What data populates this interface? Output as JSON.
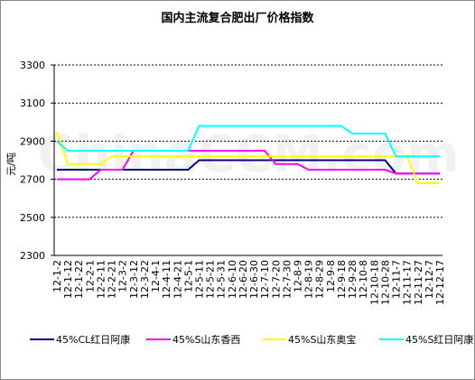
{
  "chart_data": {
    "type": "line",
    "title": "国内主流复合肥出厂价格指数",
    "y_label": "元/吨",
    "watermark": "ChinaCCM.com",
    "categories": [
      "12-1-2",
      "12-1-12",
      "12-1-22",
      "12-2-1",
      "12-2-11",
      "12-2-21",
      "12-3-2",
      "12-3-12",
      "12-3-22",
      "12-4-1",
      "12-4-11",
      "12-4-21",
      "12-5-1",
      "12-5-11",
      "12-5-21",
      "12-5-31",
      "12-6-10",
      "12-6-20",
      "12-6-30",
      "12-7-10",
      "12-7-20",
      "12-7-30",
      "12-8-9",
      "12-8-19",
      "12-8-29",
      "12-9-8",
      "12-9-18",
      "12-9-28",
      "12-10-8",
      "12-10-18",
      "12-10-28",
      "12-11-7",
      "12-11-17",
      "12-11-27",
      "12-12-7",
      "12-12-17"
    ],
    "series": [
      {
        "name": "45%CL红日阿康",
        "color": "#000080",
        "values": [
          2750,
          2750,
          2750,
          2750,
          2750,
          2750,
          2750,
          2750,
          2750,
          2750,
          2750,
          2750,
          2750,
          2800,
          2800,
          2800,
          2800,
          2800,
          2800,
          2800,
          2800,
          2800,
          2800,
          2800,
          2800,
          2800,
          2800,
          2800,
          2800,
          2800,
          2800,
          2730,
          2730,
          2730,
          2730,
          2730
        ]
      },
      {
        "name": "45%S山东香西",
        "color": "#ff00ff",
        "values": [
          2700,
          2700,
          2700,
          2700,
          2750,
          2750,
          2750,
          2850,
          2850,
          2850,
          2850,
          2850,
          2850,
          2850,
          2850,
          2850,
          2850,
          2850,
          2850,
          2850,
          2780,
          2780,
          2780,
          2750,
          2750,
          2750,
          2750,
          2750,
          2750,
          2750,
          2750,
          2730,
          2730,
          2730,
          2730,
          2730
        ]
      },
      {
        "name": "45%S山东奥宝",
        "color": "#ffff00",
        "values": [
          2950,
          2780,
          2780,
          2780,
          2780,
          2820,
          2820,
          2820,
          2820,
          2820,
          2820,
          2820,
          2820,
          2820,
          2820,
          2820,
          2820,
          2820,
          2820,
          2820,
          2820,
          2820,
          2820,
          2820,
          2820,
          2820,
          2820,
          2820,
          2820,
          2820,
          2820,
          2820,
          2820,
          2680,
          2680,
          2680
        ]
      },
      {
        "name": "45%S红日阿康",
        "color": "#00ffff",
        "values": [
          2900,
          2850,
          2850,
          2850,
          2850,
          2850,
          2850,
          2850,
          2850,
          2850,
          2850,
          2850,
          2850,
          2980,
          2980,
          2980,
          2980,
          2980,
          2980,
          2980,
          2980,
          2980,
          2980,
          2980,
          2980,
          2980,
          2980,
          2940,
          2940,
          2940,
          2940,
          2820,
          2820,
          2820,
          2820,
          2820
        ]
      }
    ],
    "ylim": [
      2300,
      3300
    ],
    "yticks": [
      2300,
      2500,
      2700,
      2900,
      3100,
      3300
    ],
    "grid": true
  }
}
